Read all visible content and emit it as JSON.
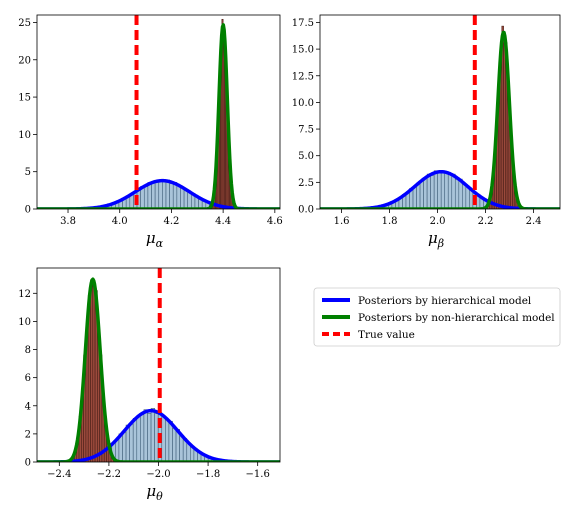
{
  "chart_data": [
    {
      "type": "line",
      "xlabel": "μ",
      "xlabel_sub": "α",
      "xlim": [
        3.68,
        4.62
      ],
      "ylim": [
        0,
        26
      ],
      "xticks": [
        "3.8",
        "4.0",
        "4.2",
        "4.4",
        "4.6"
      ],
      "xtick_values": [
        3.8,
        4.0,
        4.2,
        4.4,
        4.6
      ],
      "yticks": [
        "0",
        "5",
        "10",
        "15",
        "20",
        "25"
      ],
      "ytick_values": [
        0,
        5,
        10,
        15,
        20,
        25
      ],
      "true_value": 4.065,
      "series": [
        {
          "key": "hier",
          "mean": 4.165,
          "sd": 0.105,
          "peak": 3.8
        },
        {
          "key": "nonhier",
          "mean": 4.4,
          "sd": 0.016,
          "peak": 24.7
        }
      ],
      "grid": false
    },
    {
      "type": "line",
      "xlabel": "μ",
      "xlabel_sub": "β",
      "xlim": [
        1.51,
        2.51
      ],
      "ylim": [
        0,
        18.2
      ],
      "xticks": [
        "1.6",
        "1.8",
        "2.0",
        "2.2",
        "2.4"
      ],
      "xtick_values": [
        1.6,
        1.8,
        2.0,
        2.2,
        2.4
      ],
      "yticks": [
        "0.0",
        "2.5",
        "5.0",
        "7.5",
        "10.0",
        "12.5",
        "15.0",
        "17.5"
      ],
      "ytick_values": [
        0,
        2.5,
        5.0,
        7.5,
        10.0,
        12.5,
        15.0,
        17.5
      ],
      "true_value": 2.155,
      "series": [
        {
          "key": "hier",
          "mean": 2.015,
          "sd": 0.11,
          "peak": 3.5
        },
        {
          "key": "nonhier",
          "mean": 2.275,
          "sd": 0.024,
          "peak": 16.6
        }
      ],
      "grid": false
    },
    {
      "type": "line",
      "xlabel": "μ",
      "xlabel_sub": "θ",
      "xlim": [
        -2.49,
        -1.51
      ],
      "ylim": [
        0,
        13.8
      ],
      "xticks": [
        "−2.4",
        "−2.2",
        "−2.0",
        "−1.8",
        "−1.6"
      ],
      "xtick_values": [
        -2.4,
        -2.2,
        -2.0,
        -1.8,
        -1.6
      ],
      "yticks": [
        "0",
        "2",
        "4",
        "6",
        "8",
        "10",
        "12"
      ],
      "ytick_values": [
        0,
        2,
        4,
        6,
        8,
        10,
        12
      ],
      "true_value": -1.995,
      "series": [
        {
          "key": "hier",
          "mean": -2.03,
          "sd": 0.108,
          "peak": 3.65
        },
        {
          "key": "nonhier",
          "mean": -2.265,
          "sd": 0.03,
          "peak": 13.0
        }
      ],
      "grid": false
    }
  ],
  "legend": {
    "placement": "right",
    "items": [
      {
        "label": "Posteriors by hierarchical model",
        "color": "#0000ff",
        "style": "solid"
      },
      {
        "label": "Posteriors by non-hierarchical model",
        "color": "#008000",
        "style": "solid"
      },
      {
        "label": "True value",
        "color": "#ff0000",
        "style": "dashed"
      }
    ]
  },
  "colors": {
    "hier": "#0000ff",
    "nonhier": "#008000",
    "truth": "#ff0000",
    "hist_hier_fill": "#a9c4d9",
    "hist_hier_edge": "#41607a",
    "hist_nonhier_fill": "#9b4a3c",
    "hist_nonhier_edge": "#4a1f18"
  }
}
